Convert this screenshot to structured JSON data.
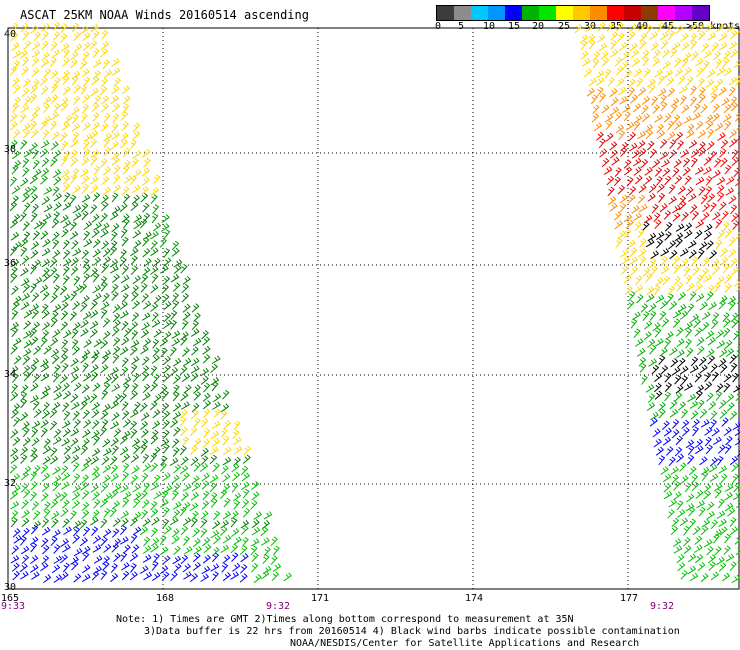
{
  "title": "ASCAT 25KM NOAA Winds 20160514 ascending",
  "legend": {
    "colors": [
      "#3c3c3c",
      "#8c8c8c",
      "#00c8ff",
      "#0096ff",
      "#0000ff",
      "#00b400",
      "#00e600",
      "#ffff00",
      "#ffc800",
      "#ff8c00",
      "#ff0000",
      "#c80000",
      "#8c3c00",
      "#ff00ff",
      "#b400ff",
      "#6400c8"
    ],
    "labels": [
      "0",
      "5",
      "10",
      "15",
      "20",
      "25",
      "30",
      "35",
      "40",
      "45",
      ">50 knots"
    ]
  },
  "map": {
    "lat_labels": [
      "40",
      "38",
      "36",
      "34",
      "32",
      "30"
    ],
    "lon_labels": [
      "165",
      "168",
      "171",
      "174",
      "177"
    ],
    "time_labels": [
      "9:33",
      "9:32",
      "9:32"
    ],
    "lat_range": [
      30,
      40
    ],
    "lon_range": [
      165,
      179
    ]
  },
  "notes": {
    "line1": "Note: 1) Times are GMT 2)Times along bottom correspond to measurement at 35N",
    "line2": "3)Data buffer is 22 hrs from 20160514 4) Black wind barbs indicate possible contamination",
    "line3": "NOAA/NESDIS/Center for Satellite Applications and Research"
  }
}
